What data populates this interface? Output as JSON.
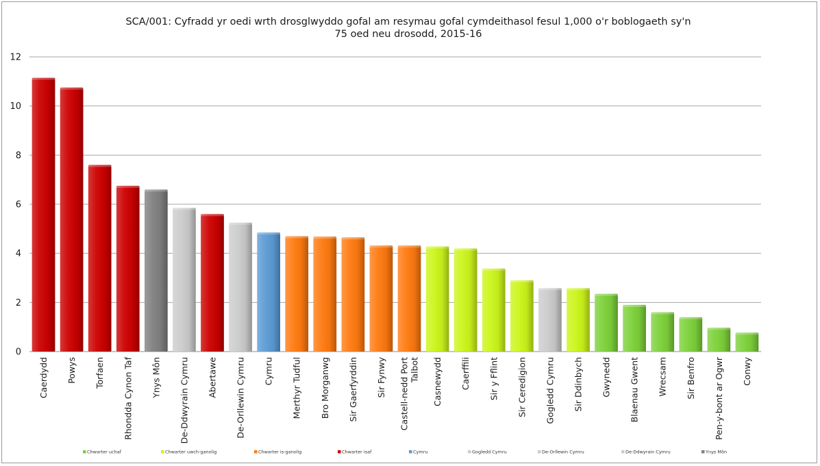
{
  "chart_data": {
    "type": "bar",
    "title_lines": [
      "SCA/001: Cyfradd yr oedi wrth drosglwyddo gofal am resymau gofal cymdeithasol fesul 1,000 o'r boblogaeth sy'n",
      "75 oed neu drosodd, 2015-16"
    ],
    "xlabel": "",
    "ylabel": "",
    "ylim": [
      0,
      12
    ],
    "yticks": [
      0,
      2,
      4,
      6,
      8,
      10,
      12
    ],
    "grid": true,
    "legend_position": "bottom",
    "categories": [
      [
        "Caerdydd"
      ],
      [
        "Powys"
      ],
      [
        "Torfaen"
      ],
      [
        "Rhondda Cynon Taf"
      ],
      [
        "Ynys Môn"
      ],
      [
        "De-Ddwyrain Cymru"
      ],
      [
        "Abertawe"
      ],
      [
        "De-Orllewin Cymru"
      ],
      [
        "Cymru"
      ],
      [
        "Merthyr Tudful"
      ],
      [
        "Bro Morganwg"
      ],
      [
        "Sir Gaerfyrddin"
      ],
      [
        "Sir Fynwy"
      ],
      [
        "Castell-nedd Port",
        "Talbot"
      ],
      [
        "Casnewydd"
      ],
      [
        "Caerffili"
      ],
      [
        "Sir y Fflint"
      ],
      [
        "Sir Ceredigion"
      ],
      [
        "Gogledd Cymru"
      ],
      [
        "Sir Ddinbych"
      ],
      [
        "Gwynedd"
      ],
      [
        "Blaenau Gwent"
      ],
      [
        "Wrecsam"
      ],
      [
        "Sir Benfro"
      ],
      [
        "Pen-y-bont ar Ogwr"
      ],
      [
        "Conwy"
      ]
    ],
    "values": [
      11.15,
      10.75,
      7.6,
      6.75,
      6.6,
      5.85,
      5.6,
      5.25,
      4.85,
      4.7,
      4.68,
      4.65,
      4.32,
      4.32,
      4.28,
      4.2,
      3.38,
      2.9,
      2.58,
      2.58,
      2.35,
      1.9,
      1.6,
      1.4,
      0.97,
      0.77
    ],
    "groups": [
      3,
      3,
      3,
      3,
      8,
      7,
      3,
      6,
      4,
      2,
      2,
      2,
      2,
      2,
      1,
      1,
      1,
      1,
      5,
      1,
      0,
      0,
      0,
      0,
      0,
      0
    ],
    "legend": [
      {
        "label": "Chwarter uchaf",
        "color": "#7dd13a"
      },
      {
        "label": "Chwarter uwch-ganolig",
        "color": "#ccf51a"
      },
      {
        "label": "Chwarter is-ganolig",
        "color": "#ff7a10"
      },
      {
        "label": "Chwarter isaf",
        "color": "#cc0000"
      },
      {
        "label": "Cymru",
        "color": "#5b9bd5"
      },
      {
        "label": "Gogledd Cymru",
        "color": "#cccccc"
      },
      {
        "label": "De-Orllewin Cymru",
        "color": "#cccccc"
      },
      {
        "label": "De-Ddwyrain Cymru",
        "color": "#cccccc"
      },
      {
        "label": "Ynys Môn",
        "color": "#808080"
      }
    ]
  }
}
